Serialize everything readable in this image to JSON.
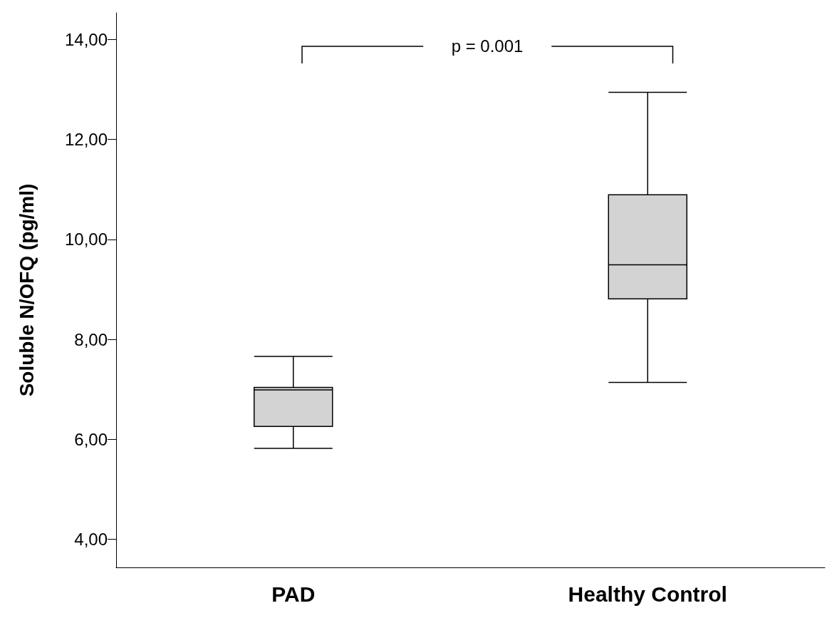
{
  "chart_data": {
    "type": "box",
    "ylabel": "Soluble N/OFQ (pg/ml)",
    "categories": [
      "PAD",
      "Healthy Control"
    ],
    "boxes": [
      {
        "low": 5.82,
        "q1": 6.26,
        "median": 6.99,
        "q3": 7.04,
        "high": 7.66
      },
      {
        "low": 7.14,
        "q1": 8.81,
        "median": 9.49,
        "q3": 10.89,
        "high": 12.94
      }
    ],
    "color": "#d3d3d3",
    "ylim": [
      3.44,
      14.53
    ],
    "yticks": [
      {
        "value": 4,
        "label": "4,00"
      },
      {
        "value": 6,
        "label": "6,00"
      },
      {
        "value": 8,
        "label": "8,00"
      },
      {
        "value": 10,
        "label": "10,00"
      },
      {
        "value": 12,
        "label": "12,00"
      },
      {
        "value": 14,
        "label": "14,00"
      }
    ],
    "grid": false,
    "annotations": [
      "p = 0.001"
    ]
  }
}
